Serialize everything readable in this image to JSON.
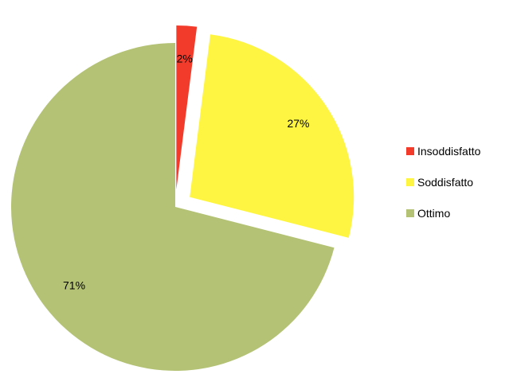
{
  "chart_data": {
    "type": "pie",
    "title": "",
    "categories": [
      "Insoddisfatto",
      "Soddisfatto",
      "Ottimo"
    ],
    "values": [
      2,
      27,
      71
    ],
    "labels": [
      "2%",
      "27%",
      "71%"
    ],
    "colors": [
      "#f23b2a",
      "#fdf542",
      "#b3c274"
    ],
    "exploded": [
      true,
      true,
      false
    ],
    "legend": "right"
  }
}
